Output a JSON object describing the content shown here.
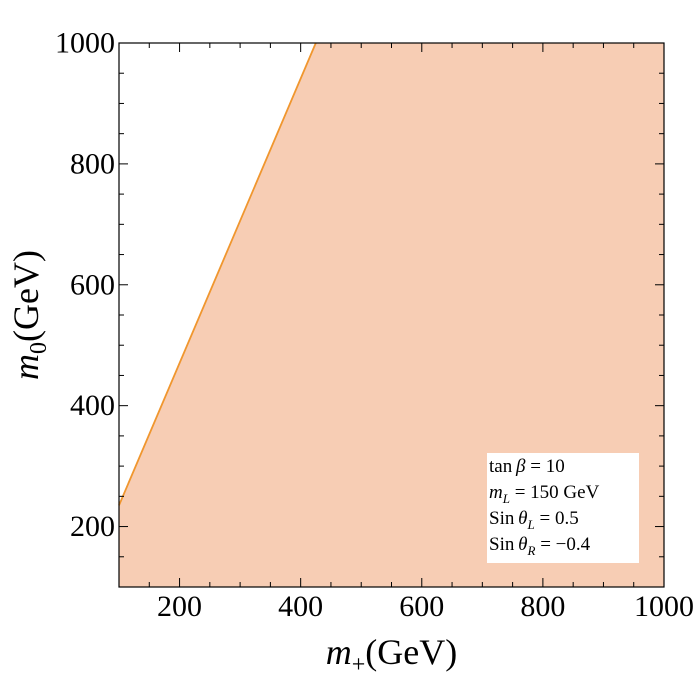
{
  "chart_data": {
    "type": "area",
    "xlabel": {
      "var": "m",
      "sub": "+",
      "unit": "(GeV)"
    },
    "ylabel": {
      "var": "m",
      "sub": "0",
      "unit": "(GeV)"
    },
    "xlim": [
      100,
      1000
    ],
    "ylim": [
      100,
      1000
    ],
    "xticks": [
      200,
      400,
      600,
      800,
      1000
    ],
    "yticks": [
      200,
      400,
      600,
      800,
      1000
    ],
    "grid": false,
    "boundary": {
      "x": [
        100,
        425
      ],
      "y": [
        235,
        1000
      ]
    },
    "region_side": "below-right",
    "colors": {
      "region_fill": "#f7cdb4",
      "boundary_line": "#f0962e",
      "axes": "#000000"
    },
    "legend_position": "bottom-right",
    "annotations": [
      {
        "pre": "tan ",
        "greek": "β",
        "sub": "",
        "post": " = 10"
      },
      {
        "pre": "",
        "greek": "m",
        "sub": "L",
        "post": " =  150 GeV"
      },
      {
        "pre": "Sin ",
        "greek": "θ",
        "sub": "L",
        "post": " = 0.5"
      },
      {
        "pre": "Sin ",
        "greek": "θ",
        "sub": "R",
        "post": " = −0.4"
      }
    ]
  }
}
